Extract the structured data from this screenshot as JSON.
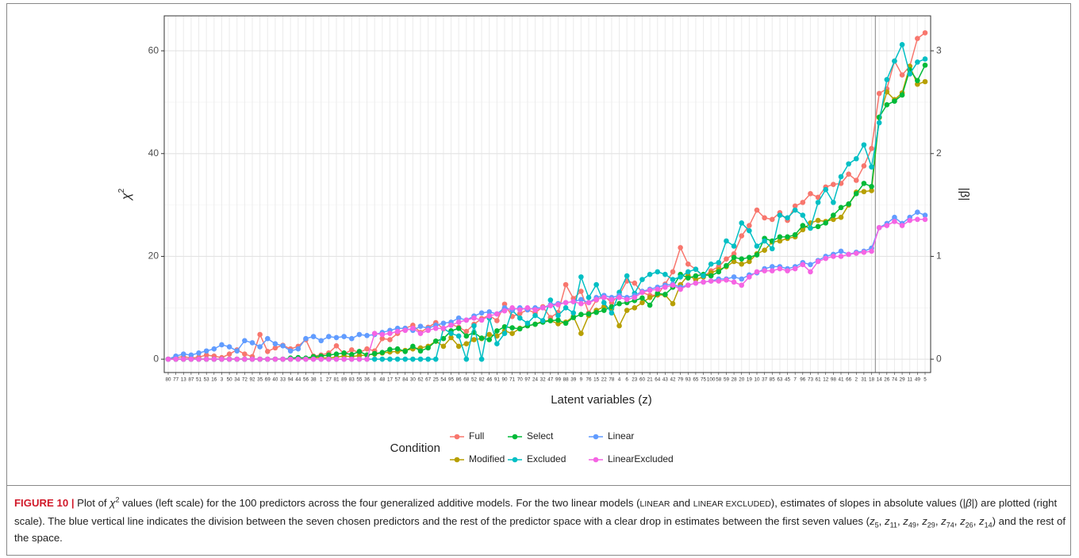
{
  "chart_data": {
    "type": "line",
    "xlabel": "Latent variables (z)",
    "ylabel": [
      "χ",
      "2"
    ],
    "y2label": "|β|",
    "legend_title": "Condition",
    "categories": [
      "80",
      "77",
      "13",
      "87",
      "51",
      "53",
      "16",
      "3",
      "50",
      "34",
      "72",
      "92",
      "35",
      "69",
      "40",
      "33",
      "94",
      "44",
      "56",
      "38",
      "1",
      "27",
      "81",
      "89",
      "83",
      "55",
      "36",
      "8",
      "48",
      "17",
      "57",
      "84",
      "30",
      "62",
      "67",
      "25",
      "54",
      "95",
      "86",
      "68",
      "52",
      "82",
      "46",
      "91",
      "90",
      "71",
      "70",
      "97",
      "24",
      "32",
      "47",
      "99",
      "88",
      "39",
      "9",
      "76",
      "15",
      "22",
      "78",
      "4",
      "6",
      "23",
      "60",
      "21",
      "64",
      "43",
      "42",
      "79",
      "93",
      "65",
      "75",
      "100",
      "58",
      "59",
      "28",
      "20",
      "19",
      "10",
      "37",
      "85",
      "63",
      "45",
      "7",
      "96",
      "73",
      "61",
      "12",
      "98",
      "41",
      "66",
      "2",
      "31",
      "18",
      "14",
      "26",
      "74",
      "29",
      "11",
      "49",
      "5"
    ],
    "ylim": [
      -2.6,
      66.8
    ],
    "yticks": [
      0,
      20,
      40,
      60
    ],
    "y2lim": [
      -0.13,
      3.34
    ],
    "y2ticks": [
      0,
      1,
      2,
      3
    ],
    "grid": true,
    "series": [
      {
        "name": "Full",
        "color": "#F8766D",
        "values": [
          0,
          0.3,
          0.5,
          0.2,
          0.4,
          0.8,
          0.6,
          0.3,
          1.0,
          1.8,
          1.0,
          0.5,
          4.8,
          1.5,
          2.2,
          2.7,
          2.0,
          2.5,
          3.8,
          0.6,
          0.8,
          1.2,
          2.6,
          1.0,
          1.8,
          1.3,
          2.0,
          1.6,
          4.0,
          3.8,
          5.0,
          6.0,
          6.6,
          5.2,
          6.2,
          7.1,
          5.9,
          6.8,
          6.2,
          5.4,
          6.8,
          7.9,
          8.5,
          7.5,
          10.7,
          8.3,
          8.9,
          9.6,
          9.0,
          10.2,
          8.1,
          9.1,
          14.5,
          11.8,
          13.2,
          9.0,
          11.5,
          12.3,
          11.0,
          12.5,
          15.2,
          14.8,
          13.0,
          12.4,
          12.5,
          14.6,
          17.0,
          21.7,
          18.5,
          17.5,
          16.0,
          17.2,
          18.0,
          19.5,
          20.5,
          24.0,
          26.0,
          29.0,
          27.5,
          27.2,
          28.5,
          27.0,
          29.8,
          30.5,
          32.2,
          31.5,
          33.5,
          34.0,
          34.2,
          36.0,
          34.8,
          37.6,
          41.0,
          51.7,
          52.6,
          58.0,
          55.3,
          57.0,
          62.4,
          63.5
        ]
      },
      {
        "name": "Modified",
        "color": "#B79F00",
        "values": [
          0,
          0,
          0,
          0,
          0,
          0,
          0,
          0,
          0,
          0,
          0,
          0,
          0,
          0,
          0,
          0,
          0,
          0.2,
          0.1,
          0.3,
          0.3,
          0.2,
          0.4,
          0.6,
          0.5,
          0.7,
          0.8,
          1.0,
          1.2,
          1.4,
          1.5,
          1.7,
          2.0,
          2.2,
          2.5,
          3.5,
          2.5,
          4.2,
          2.5,
          3.0,
          3.8,
          4.0,
          4.8,
          4.5,
          5.5,
          5.0,
          6.0,
          6.5,
          6.8,
          7.4,
          7.5,
          6.9,
          7.2,
          8.3,
          5.0,
          8.5,
          9.5,
          10.2,
          9.8,
          6.5,
          9.5,
          10.0,
          11.0,
          12.0,
          12.5,
          12.5,
          10.8,
          14.5,
          16.3,
          15.5,
          16.0,
          16.8,
          17.4,
          18.0,
          19.0,
          18.5,
          19.0,
          20.5,
          21.2,
          22.8,
          23.0,
          23.5,
          23.8,
          25.2,
          26.5,
          27.0,
          26.8,
          27.2,
          27.6,
          30.0,
          32.5,
          32.6,
          32.8,
          47.0,
          52.0,
          50.5,
          51.8,
          57.0,
          53.5,
          54.0
        ]
      },
      {
        "name": "Select",
        "color": "#00BA38",
        "values": [
          0,
          0,
          0,
          0,
          0,
          0,
          0,
          0,
          0,
          0,
          0,
          0,
          0,
          0,
          0,
          0,
          0.2,
          0.3,
          0.2,
          0.5,
          0.6,
          0.8,
          1.0,
          1.2,
          0.9,
          1.5,
          0.8,
          1.1,
          1.3,
          1.9,
          2.0,
          1.5,
          2.5,
          1.6,
          2.2,
          3.5,
          4.0,
          5.5,
          6.0,
          4.5,
          5.2,
          4.1,
          3.8,
          5.5,
          6.3,
          6.1,
          5.9,
          6.5,
          6.8,
          7.2,
          7.5,
          7.6,
          7.0,
          8.1,
          8.7,
          8.8,
          9.1,
          9.5,
          10.2,
          10.8,
          11.0,
          11.4,
          11.9,
          10.5,
          12.8,
          12.6,
          14.0,
          16.5,
          15.8,
          16.2,
          16.5,
          16.2,
          17.0,
          18.2,
          19.8,
          19.5,
          19.8,
          20.3,
          23.5,
          23.0,
          23.8,
          23.8,
          24.2,
          26.0,
          25.5,
          25.8,
          26.5,
          28.0,
          29.5,
          30.2,
          32.2,
          34.2,
          33.6,
          47.1,
          49.5,
          50.2,
          51.4,
          56.3,
          54.2,
          57.2
        ]
      },
      {
        "name": "Excluded",
        "color": "#00BFC4",
        "values": [
          0,
          0,
          0,
          0,
          0,
          0,
          0,
          0,
          0,
          0,
          0,
          0,
          0,
          0,
          0,
          0,
          0,
          0,
          0,
          0,
          0,
          0,
          0,
          0,
          0,
          0,
          0,
          0,
          0,
          0,
          0,
          0,
          0,
          0,
          0,
          0,
          6.0,
          5.0,
          4.5,
          0,
          6.5,
          0,
          8.0,
          3.0,
          5.0,
          9.5,
          8.0,
          7.0,
          8.5,
          7.5,
          11.5,
          8.5,
          10.0,
          9.0,
          16.0,
          12.0,
          14.5,
          11.0,
          9.0,
          13.0,
          16.2,
          12.8,
          15.5,
          16.5,
          17.0,
          16.5,
          15.5,
          16.0,
          17.0,
          17.5,
          16.2,
          18.5,
          18.8,
          23.0,
          22.0,
          26.5,
          25.0,
          22.0,
          23.0,
          21.5,
          28.0,
          27.5,
          29.0,
          28.0,
          25.5,
          30.5,
          33.0,
          30.5,
          35.5,
          38.0,
          39.0,
          41.7,
          37.4,
          46.0,
          54.4,
          58.0,
          61.2,
          55.5,
          57.8,
          58.4
        ]
      },
      {
        "name": "Linear",
        "color": "#619CFF",
        "axis": "y2",
        "values": [
          0,
          0.03,
          0.05,
          0.04,
          0.06,
          0.08,
          0.1,
          0.14,
          0.12,
          0.08,
          0.18,
          0.16,
          0.12,
          0.2,
          0.15,
          0.13,
          0.08,
          0.1,
          0.2,
          0.22,
          0.18,
          0.22,
          0.21,
          0.22,
          0.2,
          0.24,
          0.23,
          0.24,
          0.26,
          0.28,
          0.3,
          0.3,
          0.28,
          0.32,
          0.3,
          0.33,
          0.35,
          0.36,
          0.4,
          0.38,
          0.42,
          0.45,
          0.46,
          0.44,
          0.5,
          0.48,
          0.5,
          0.48,
          0.5,
          0.5,
          0.53,
          0.54,
          0.55,
          0.56,
          0.58,
          0.55,
          0.6,
          0.62,
          0.6,
          0.62,
          0.6,
          0.62,
          0.66,
          0.68,
          0.7,
          0.72,
          0.73,
          0.7,
          0.72,
          0.74,
          0.75,
          0.76,
          0.78,
          0.78,
          0.8,
          0.78,
          0.82,
          0.84,
          0.88,
          0.9,
          0.9,
          0.88,
          0.9,
          0.94,
          0.92,
          0.96,
          1.0,
          1.02,
          1.05,
          1.02,
          1.04,
          1.05,
          1.08,
          1.28,
          1.32,
          1.38,
          1.32,
          1.38,
          1.43,
          1.4
        ]
      },
      {
        "name": "LinearExcluded",
        "color": "#F564E3",
        "axis": "y2",
        "values": [
          0,
          0,
          0,
          0,
          0,
          0,
          0,
          0,
          0,
          0,
          0,
          0,
          0,
          0,
          0,
          0,
          0,
          0,
          0,
          0,
          0,
          0,
          0,
          0,
          0,
          0,
          0,
          0.25,
          0.24,
          0.25,
          0.27,
          0.28,
          0.3,
          0.25,
          0.28,
          0.3,
          0.3,
          0.33,
          0.36,
          0.38,
          0.4,
          0.38,
          0.42,
          0.44,
          0.47,
          0.5,
          0.48,
          0.5,
          0.48,
          0.5,
          0.52,
          0.53,
          0.55,
          0.56,
          0.54,
          0.55,
          0.58,
          0.6,
          0.58,
          0.6,
          0.58,
          0.6,
          0.65,
          0.67,
          0.68,
          0.7,
          0.72,
          0.68,
          0.72,
          0.74,
          0.75,
          0.76,
          0.76,
          0.77,
          0.75,
          0.72,
          0.8,
          0.85,
          0.86,
          0.86,
          0.88,
          0.86,
          0.88,
          0.92,
          0.85,
          0.95,
          0.98,
          1.0,
          1.0,
          1.02,
          1.03,
          1.04,
          1.05,
          1.28,
          1.3,
          1.34,
          1.3,
          1.35,
          1.36,
          1.36
        ]
      }
    ]
  },
  "caption": {
    "label": "FIGURE 10 |",
    "parts": [
      " Plot of ",
      "χ",
      "2",
      " values (left scale) for the 100 predictors across the four generalized additive models. For the two linear models (",
      "LINEAR",
      " and ",
      "LINEAR EXCLUDED",
      "), estimates of slopes in absolute values (|",
      "β",
      "|) are plotted (right scale). The blue vertical line indicates the division between the seven chosen predictors and the rest of the predictor space with a clear drop in estimates between the first seven values (",
      "z",
      "5",
      ", ",
      "z",
      "11",
      ", ",
      "z",
      "49",
      ", ",
      "z",
      "29",
      ", ",
      "z",
      "74",
      ", ",
      "z",
      "26",
      ", ",
      "z",
      "14",
      ") and the rest of the space."
    ]
  }
}
